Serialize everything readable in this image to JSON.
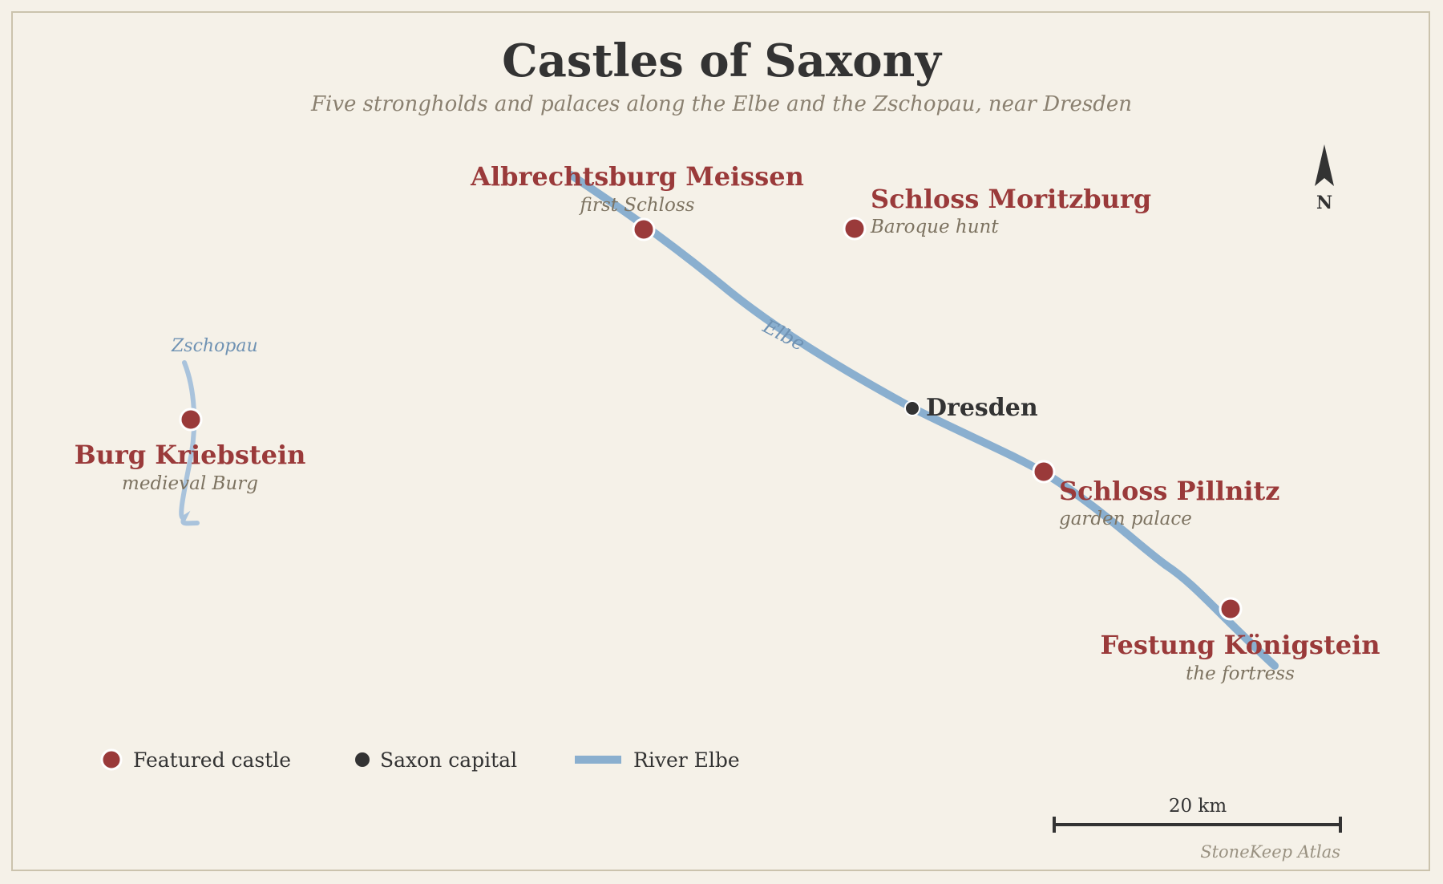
{
  "map": {
    "title": "Castles of Saxony",
    "subtitle": "Five strongholds and palaces along the Elbe and the Zschopau, near Dresden",
    "compass_label": "N",
    "credit": "StoneKeep Atlas",
    "scale_label": "20 km"
  },
  "rivers": {
    "elbe_label": "Elbe",
    "zschopau_label": "Zschopau"
  },
  "places": {
    "meissen": {
      "name": "Albrechtsburg Meissen",
      "note": "first Schloss"
    },
    "moritzburg": {
      "name": "Schloss Moritzburg",
      "note": "Baroque hunt"
    },
    "kriebstein": {
      "name": "Burg Kriebstein",
      "note": "medieval Burg"
    },
    "pillnitz": {
      "name": "Schloss Pillnitz",
      "note": "garden palace"
    },
    "koenigstein": {
      "name": "Festung Königstein",
      "note": "the fortress"
    },
    "dresden": {
      "name": "Dresden"
    }
  },
  "legend": {
    "castle": "Featured castle",
    "capital": "Saxon capital",
    "river": "River Elbe"
  },
  "colors": {
    "castle": "#9a3a3a",
    "capital": "#333333",
    "river": "#8aafcf",
    "background": "#f5f1e8"
  }
}
